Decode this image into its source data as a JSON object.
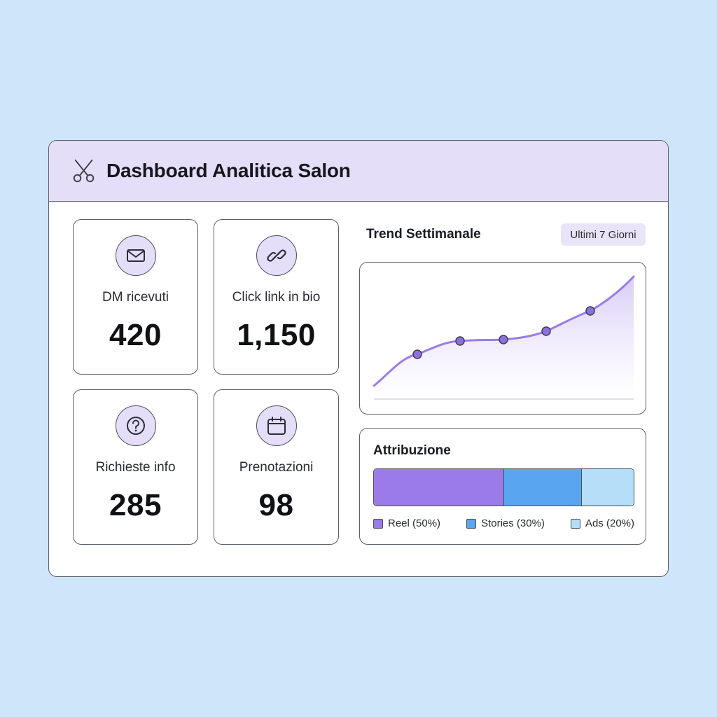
{
  "window": {
    "title": "Dashboard Analitica Salon",
    "logo_icon": "scissors-icon"
  },
  "metrics": [
    {
      "label": "DM ricevuti",
      "value": "420",
      "icon": "mail-icon"
    },
    {
      "label": "Click link in bio",
      "value": "1,150",
      "icon": "link-icon"
    },
    {
      "label": "Richieste info",
      "value": "285",
      "icon": "question-icon"
    },
    {
      "label": "Prenotazioni",
      "value": "98",
      "icon": "calendar-icon"
    }
  ],
  "trend": {
    "title": "Trend Settimanale",
    "range_label": "Ultimi 7 Giorni"
  },
  "attribution": {
    "title": "Attribuzione",
    "segments": [
      {
        "label": "Reel (50%)",
        "share": 50,
        "color": "#9b7be8"
      },
      {
        "label": "Stories (30%)",
        "share": 30,
        "color": "#5aa6ee"
      },
      {
        "label": "Ads (20%)",
        "share": 20,
        "color": "#b5def8"
      }
    ]
  },
  "colors": {
    "accent": "#9b7be8",
    "accent_soft": "#e4def8",
    "background": "#cfe6fa"
  }
}
